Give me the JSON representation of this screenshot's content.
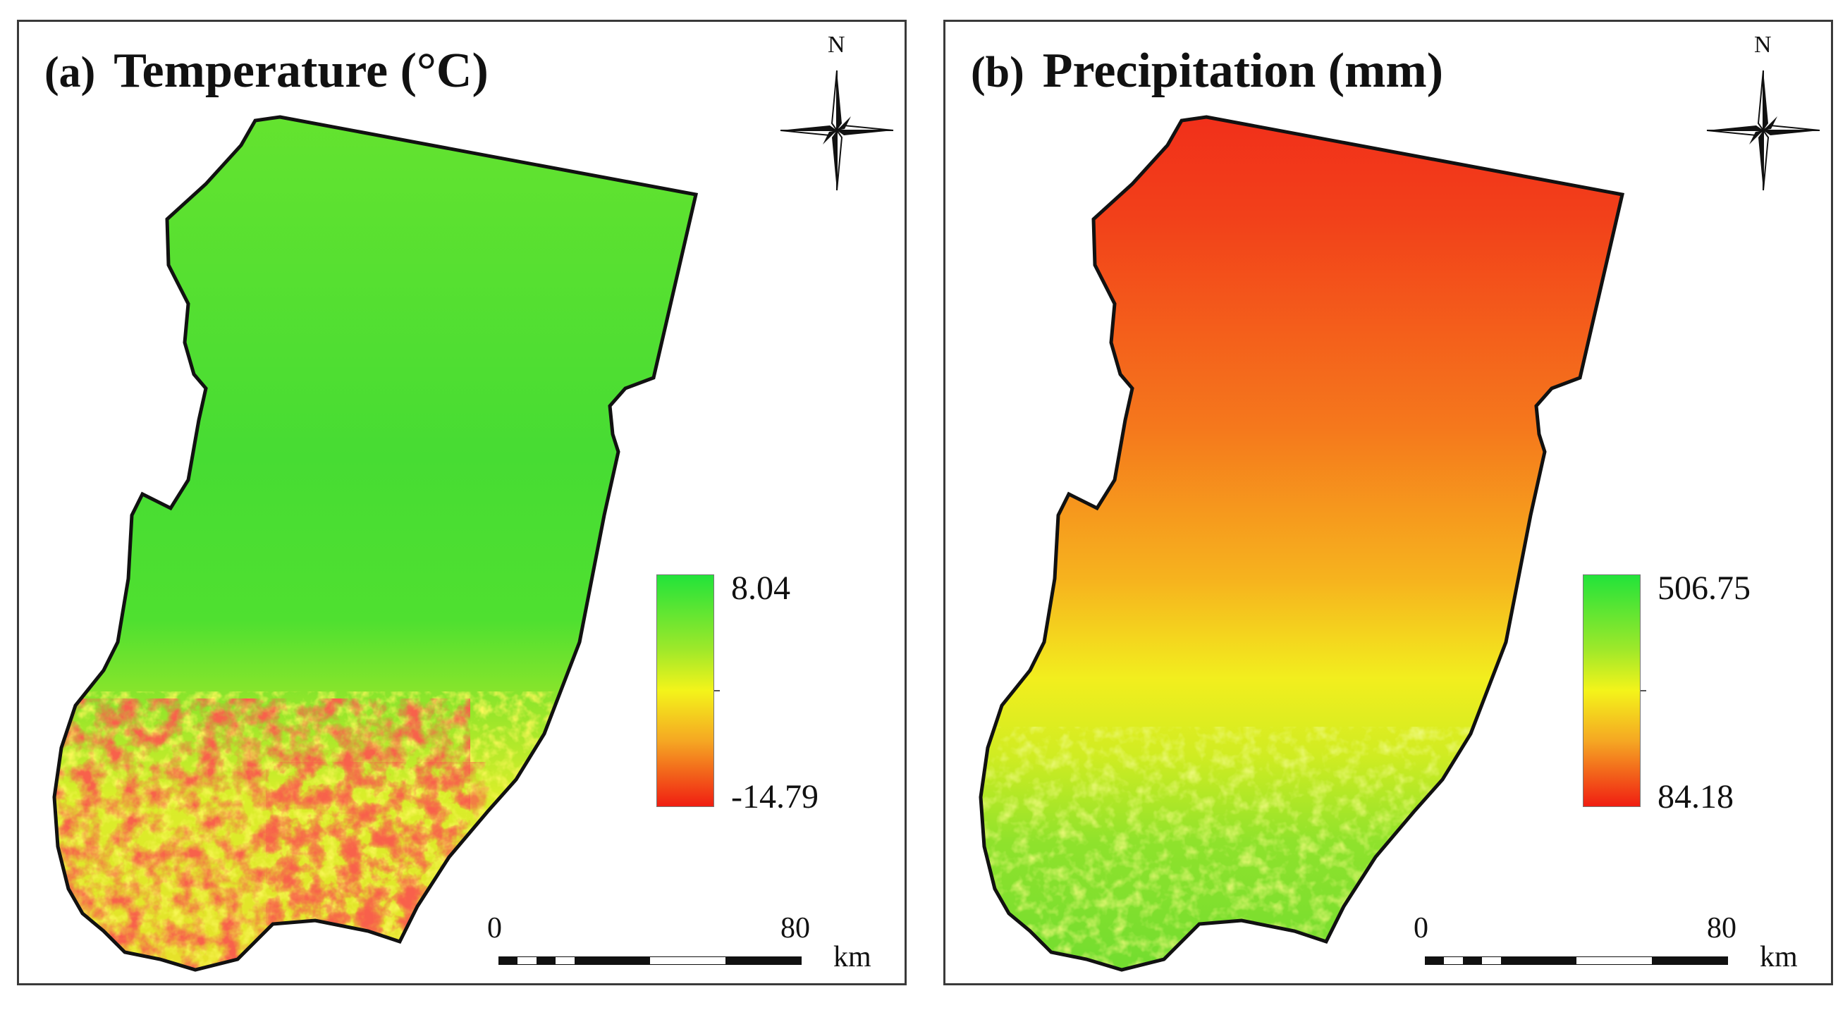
{
  "panels": [
    {
      "tag": "(a)",
      "title": "Temperature (°C)",
      "legend": {
        "max": "8.04",
        "min": "-14.79",
        "colors": [
          "#22e33a",
          "#f4f41a",
          "#f01e12"
        ]
      },
      "scale": {
        "zero": "0",
        "max": "80",
        "unit": "km"
      },
      "north_label": "N"
    },
    {
      "tag": "(b)",
      "title": "Precipitation (mm)",
      "legend": {
        "max": "506.75",
        "min": "84.18",
        "colors": [
          "#22e33a",
          "#f4f41a",
          "#f01e12"
        ]
      },
      "scale": {
        "zero": "0",
        "max": "80",
        "unit": "km"
      },
      "north_label": "N"
    }
  ],
  "icons": [
    "north-arrow-icon",
    "scale-bar-icon"
  ]
}
